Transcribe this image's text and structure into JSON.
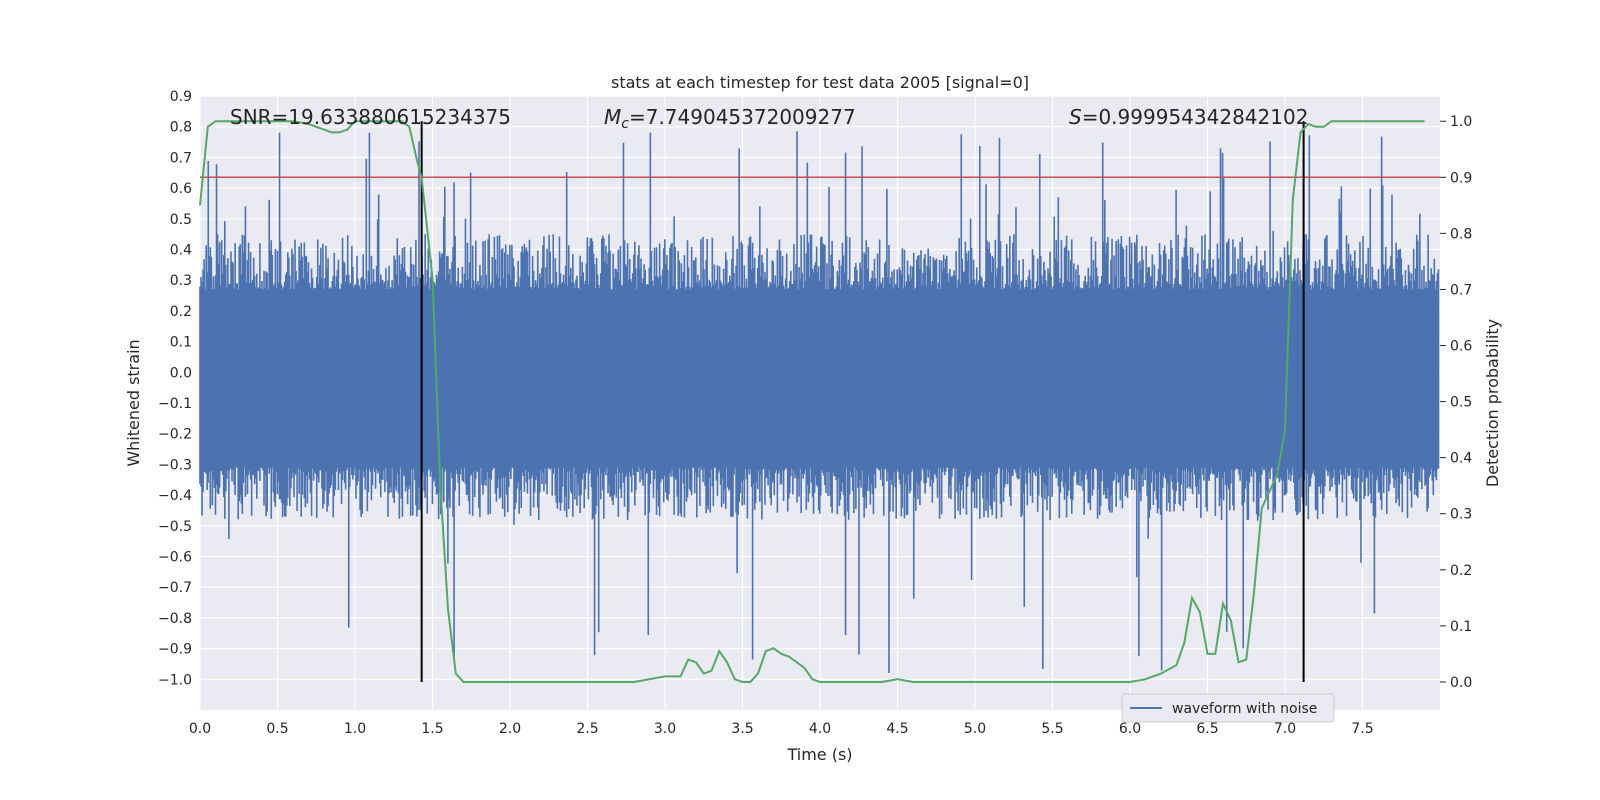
{
  "chart_data": {
    "type": "line",
    "title": "stats at each timestep for test data 2005 [signal=0]",
    "xlabel": "Time (s)",
    "ylabel": "Whitened strain",
    "y2label": "Detection probability",
    "xlim": [
      0.0,
      8.0
    ],
    "ylim": [
      -1.1,
      0.9
    ],
    "y2lim": [
      -0.05,
      1.045
    ],
    "xticks": [
      "0.0",
      "0.5",
      "1.0",
      "1.5",
      "2.0",
      "2.5",
      "3.0",
      "3.5",
      "4.0",
      "4.5",
      "5.0",
      "5.5",
      "6.0",
      "6.5",
      "7.0",
      "7.5"
    ],
    "yticks": [
      "0.9",
      "0.8",
      "0.7",
      "0.6",
      "0.5",
      "0.4",
      "0.3",
      "0.2",
      "0.1",
      "0.0",
      "−0.1",
      "−0.2",
      "−0.3",
      "−0.4",
      "−0.5",
      "−0.6",
      "−0.7",
      "−0.8",
      "−0.9",
      "−1.0"
    ],
    "y2ticks": [
      "1.0",
      "0.9",
      "0.8",
      "0.7",
      "0.6",
      "0.5",
      "0.4",
      "0.3",
      "0.2",
      "0.1",
      "0.0"
    ],
    "grid": true,
    "legend_position": "lower-right",
    "annotations": {
      "snr": "SNR=19.633880615234375",
      "mc": "=7.749045372009277",
      "s": "=0.999954342842102"
    },
    "threshold": 0.9,
    "vlines": [
      1.43,
      7.12
    ],
    "series": [
      {
        "name": "waveform with noise",
        "color": "#4c72b0",
        "kind": "noise",
        "core_amplitude": 0.27,
        "typical_peak": 0.45,
        "max": 0.79,
        "min": -1.0,
        "samples": 1200
      },
      {
        "name": "detection probability",
        "color": "#55a868",
        "axis": "right",
        "x": [
          0.0,
          0.05,
          0.1,
          0.15,
          0.2,
          0.3,
          0.4,
          0.5,
          0.6,
          0.7,
          0.75,
          0.8,
          0.85,
          0.9,
          0.95,
          1.0,
          1.05,
          1.1,
          1.2,
          1.3,
          1.35,
          1.4,
          1.43,
          1.5,
          1.55,
          1.6,
          1.65,
          1.7,
          1.8,
          2.0,
          2.2,
          2.4,
          2.6,
          2.8,
          2.9,
          3.0,
          3.05,
          3.1,
          3.15,
          3.2,
          3.25,
          3.3,
          3.35,
          3.4,
          3.45,
          3.5,
          3.55,
          3.6,
          3.65,
          3.7,
          3.75,
          3.8,
          3.85,
          3.9,
          3.95,
          4.0,
          4.05,
          4.1,
          4.15,
          4.2,
          4.3,
          4.4,
          4.5,
          4.6,
          4.7,
          4.8,
          5.0,
          5.5,
          5.8,
          6.0,
          6.1,
          6.2,
          6.3,
          6.35,
          6.4,
          6.45,
          6.5,
          6.55,
          6.6,
          6.65,
          6.7,
          6.75,
          6.8,
          6.85,
          6.9,
          6.95,
          7.0,
          7.05,
          7.1,
          7.15,
          7.2,
          7.25,
          7.3,
          7.4,
          7.45,
          7.5,
          7.6,
          7.7,
          7.8,
          7.9
        ],
        "values": [
          0.85,
          0.99,
          1.0,
          1.0,
          1.0,
          1.0,
          1.0,
          1.0,
          1.0,
          0.995,
          0.99,
          0.985,
          0.98,
          0.98,
          0.985,
          1.0,
          1.0,
          1.0,
          1.0,
          1.0,
          0.99,
          0.93,
          0.9,
          0.72,
          0.35,
          0.13,
          0.015,
          0.0,
          0.0,
          0.0,
          0.0,
          0.0,
          0.0,
          0.0,
          0.005,
          0.01,
          0.01,
          0.01,
          0.04,
          0.035,
          0.015,
          0.02,
          0.055,
          0.035,
          0.005,
          0.0,
          0.0,
          0.015,
          0.055,
          0.06,
          0.05,
          0.045,
          0.035,
          0.025,
          0.005,
          0.0,
          0.0,
          0.0,
          0.0,
          0.0,
          0.0,
          0.0,
          0.005,
          0.0,
          0.0,
          0.0,
          0.0,
          0.0,
          0.0,
          0.0,
          0.005,
          0.015,
          0.03,
          0.07,
          0.15,
          0.125,
          0.05,
          0.05,
          0.14,
          0.11,
          0.035,
          0.04,
          0.16,
          0.31,
          0.34,
          0.37,
          0.45,
          0.86,
          0.98,
          0.995,
          0.99,
          0.99,
          1.0,
          1.0,
          1.0,
          1.0,
          1.0,
          1.0,
          1.0,
          1.0
        ]
      }
    ]
  }
}
